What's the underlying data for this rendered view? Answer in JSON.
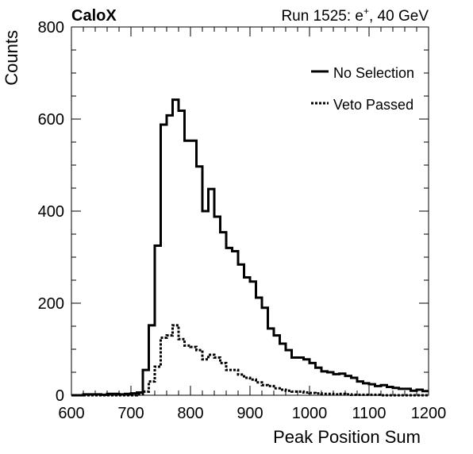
{
  "header": {
    "left_label": "CaloX",
    "right_label_prefix": "Run 1525: e",
    "right_label_sup": "+",
    "right_label_suffix": ", 40 GeV"
  },
  "chart_data": {
    "type": "step-histogram",
    "xlabel": "Peak Position Sum",
    "ylabel": "Counts",
    "xlim": [
      600,
      1200
    ],
    "ylim": [
      0,
      800
    ],
    "x_ticks": [
      "600",
      "700",
      "800",
      "900",
      "1000",
      "1100",
      "1200"
    ],
    "y_ticks": [
      "0",
      "200",
      "400",
      "600",
      "800"
    ],
    "bin_width": 10,
    "bin_edges_start": 600,
    "legend_position": "top-right",
    "series": [
      {
        "name": "No Selection",
        "style": "solid",
        "color": "#000000",
        "values": [
          0,
          0,
          2,
          2,
          2,
          1,
          3,
          3,
          2,
          3,
          4,
          6,
          55,
          152,
          325,
          588,
          608,
          642,
          618,
          553,
          553,
          497,
          400,
          448,
          388,
          354,
          320,
          313,
          284,
          256,
          247,
          212,
          190,
          145,
          130,
          112,
          98,
          82,
          82,
          78,
          70,
          60,
          52,
          50,
          46,
          47,
          42,
          38,
          30,
          26,
          24,
          20,
          22,
          18,
          16,
          14,
          14,
          10,
          12,
          9
        ]
      },
      {
        "name": "Veto Passed",
        "style": "dotted",
        "color": "#000000",
        "values": [
          0,
          0,
          0,
          0,
          0,
          0,
          0,
          0,
          0,
          0,
          0,
          2,
          8,
          30,
          62,
          125,
          130,
          152,
          122,
          108,
          105,
          98,
          78,
          88,
          82,
          70,
          55,
          55,
          45,
          38,
          34,
          28,
          22,
          20,
          15,
          12,
          10,
          8,
          8,
          6,
          5,
          4,
          3,
          3,
          2,
          3,
          2,
          1,
          1,
          1,
          1,
          1,
          0,
          0,
          0,
          0,
          0,
          0,
          0,
          0
        ]
      }
    ]
  }
}
